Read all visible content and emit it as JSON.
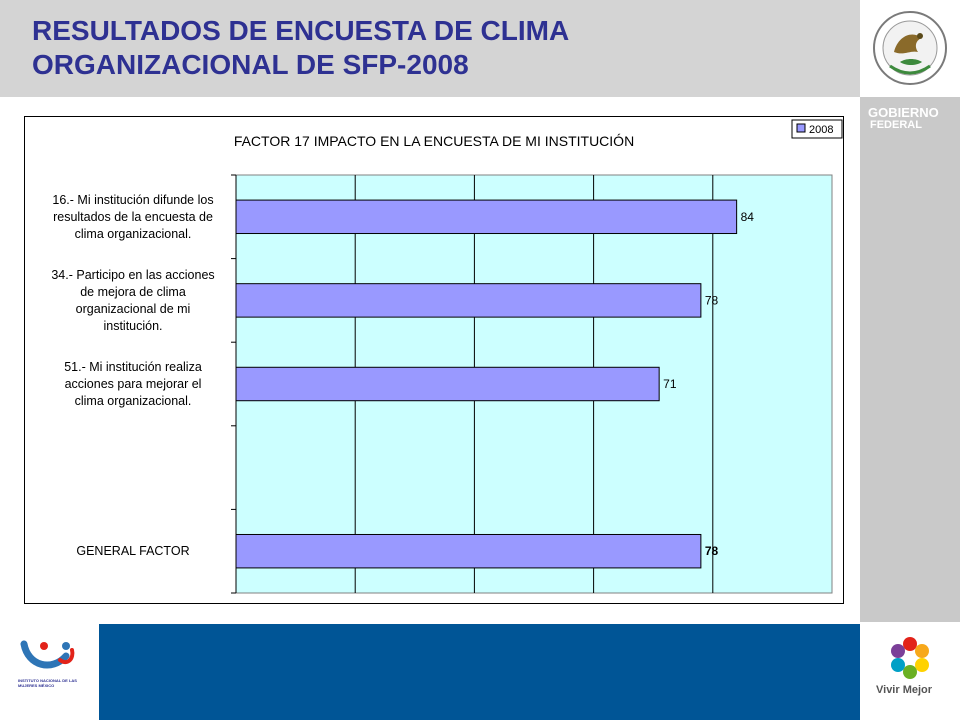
{
  "header": {
    "title_line1": "RESULTADOS DE ENCUESTA DE CLIMA",
    "title_line2": "ORGANIZACIONAL  DE SFP-2008"
  },
  "branding": {
    "gobierno_line1": "Gobierno",
    "gobierno_line2": "Federal",
    "vivir_mejor": "Vivir Mejor",
    "inm_caption": "INSTITUTO NACIONAL DE LAS MUJERES MÉXICO"
  },
  "colors": {
    "title": "#2e3192",
    "plot_background": "#ccffff",
    "bar_fill": "#9999ff",
    "bar_stroke": "#000000",
    "footer_band": "#005596",
    "header_band": "#d4d4d4",
    "side_panel": "#c9c9c9"
  },
  "chart_data": {
    "type": "bar",
    "orientation": "horizontal",
    "title": "FACTOR  17 IMPACTO EN LA ENCUESTA DE MI INSTITUCIÓN",
    "categories": [
      [
        "16.-  Mi institución difunde los",
        "resultados de la encuesta de",
        "clima organizacional."
      ],
      [
        "34.-  Participo en las acciones",
        "de mejora de clima",
        "organizacional de mi",
        "institución."
      ],
      [
        "51.-  Mi institución realiza",
        "acciones para mejorar el",
        "clima organizacional."
      ],
      [],
      [
        "GENERAL FACTOR"
      ]
    ],
    "series": [
      {
        "name": "2008",
        "values": [
          84,
          78,
          71,
          null,
          78
        ]
      }
    ],
    "data_labels": [
      "84",
      "78",
      "71",
      "",
      "78"
    ],
    "xlim": [
      0,
      100
    ],
    "legend": "top-right",
    "grid": "vertical"
  }
}
